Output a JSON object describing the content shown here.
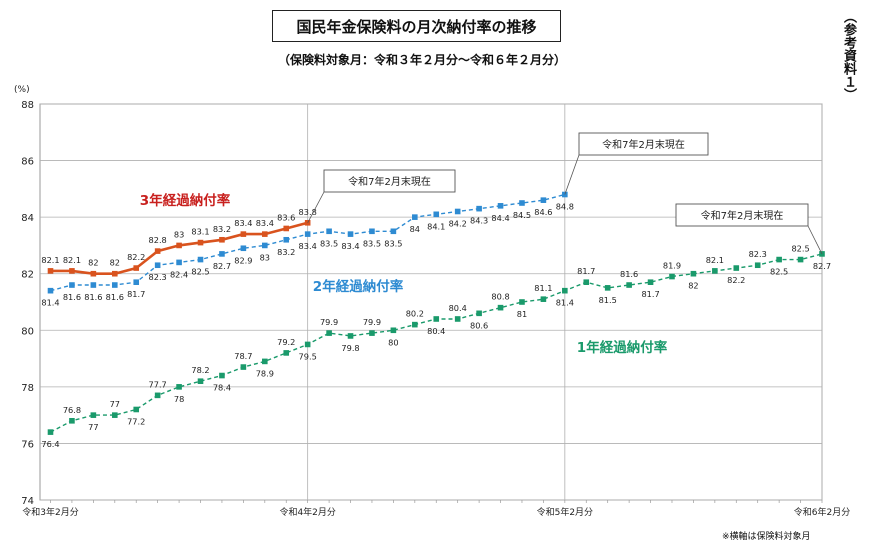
{
  "header": {
    "title": "国民年金保険料の月次納付率の推移",
    "subtitle": "（保険料対象月：令和３年２月分～令和６年２月分）",
    "side_note": "（参考資料１）",
    "footnote": "※横軸は保険料対象月"
  },
  "chart_data": {
    "type": "line",
    "yunit": "(%)",
    "ylim": [
      74,
      88
    ],
    "yticks": [
      74,
      76,
      78,
      80,
      82,
      84,
      86,
      88
    ],
    "x_tick_labels": [
      "令和3年2月分",
      "令和4年2月分",
      "令和5年2月分",
      "令和6年2月分"
    ],
    "x_month_range": [
      "令和3年2月分",
      "令和6年2月分"
    ],
    "grid": true,
    "series": [
      {
        "name": "1年経過納付率",
        "color": "#1a9a6b",
        "style": "dashed",
        "start_month_index": 0,
        "values": [
          76.4,
          76.8,
          77.0,
          77.0,
          77.2,
          77.7,
          78.0,
          78.2,
          78.4,
          78.7,
          78.9,
          79.2,
          79.5,
          79.9,
          79.8,
          79.9,
          80.0,
          80.2,
          80.4,
          80.4,
          80.6,
          80.8,
          81.0,
          81.1,
          81.4,
          81.7,
          81.5,
          81.6,
          81.7,
          81.9,
          82.0,
          82.1,
          82.2,
          82.3,
          82.5,
          82.5,
          82.7
        ],
        "label_positions": [
          "below",
          "above",
          "below",
          "above",
          "below",
          "above",
          "below",
          "above",
          "below",
          "above",
          "below",
          "above",
          "below",
          "above",
          "below",
          "above",
          "below",
          "above",
          "below",
          "above",
          "below",
          "above",
          "below",
          "above",
          "below",
          "above",
          "below",
          "above",
          "below",
          "above",
          "below",
          "above",
          "below",
          "above",
          "below",
          "above",
          "below"
        ]
      },
      {
        "name": "2年経過納付率",
        "color": "#2e8bd2",
        "style": "dashed",
        "start_month_index": 0,
        "values": [
          81.4,
          81.6,
          81.6,
          81.6,
          81.7,
          82.3,
          82.4,
          82.5,
          82.7,
          82.9,
          83.0,
          83.2,
          83.4,
          83.5,
          83.4,
          83.5,
          83.5,
          84.0,
          84.1,
          84.2,
          84.3,
          84.4,
          84.5,
          84.6,
          84.8
        ],
        "label_positions": [
          "below",
          "below",
          "below",
          "below",
          "below",
          "below",
          "below",
          "below",
          "below",
          "below",
          "below",
          "below",
          "below",
          "below",
          "below",
          "below",
          "below",
          "below",
          "below",
          "below",
          "below",
          "below",
          "below",
          "below",
          "below"
        ]
      },
      {
        "name": "3年経過納付率",
        "color": "#d9531e",
        "style": "solid",
        "start_month_index": 0,
        "values": [
          82.1,
          82.1,
          82.0,
          82.0,
          82.2,
          82.8,
          83.0,
          83.1,
          83.2,
          83.4,
          83.4,
          83.6,
          83.8
        ],
        "label_positions": [
          "above",
          "above",
          "above",
          "above",
          "above",
          "above",
          "above",
          "above",
          "above",
          "above",
          "above",
          "above",
          "above"
        ]
      }
    ],
    "series_labels": [
      {
        "text": "3年経過納付率",
        "color": "#c8201e"
      },
      {
        "text": "2年経過納付率",
        "color": "#2e8bd2"
      },
      {
        "text": "1年経過納付率",
        "color": "#1a9a6b"
      }
    ],
    "annotations": [
      {
        "text": "令和7年2月末現在",
        "series_index": 2
      },
      {
        "text": "令和7年2月末現在",
        "series_index": 1
      },
      {
        "text": "令和7年2月末現在",
        "series_index": 0
      }
    ]
  }
}
